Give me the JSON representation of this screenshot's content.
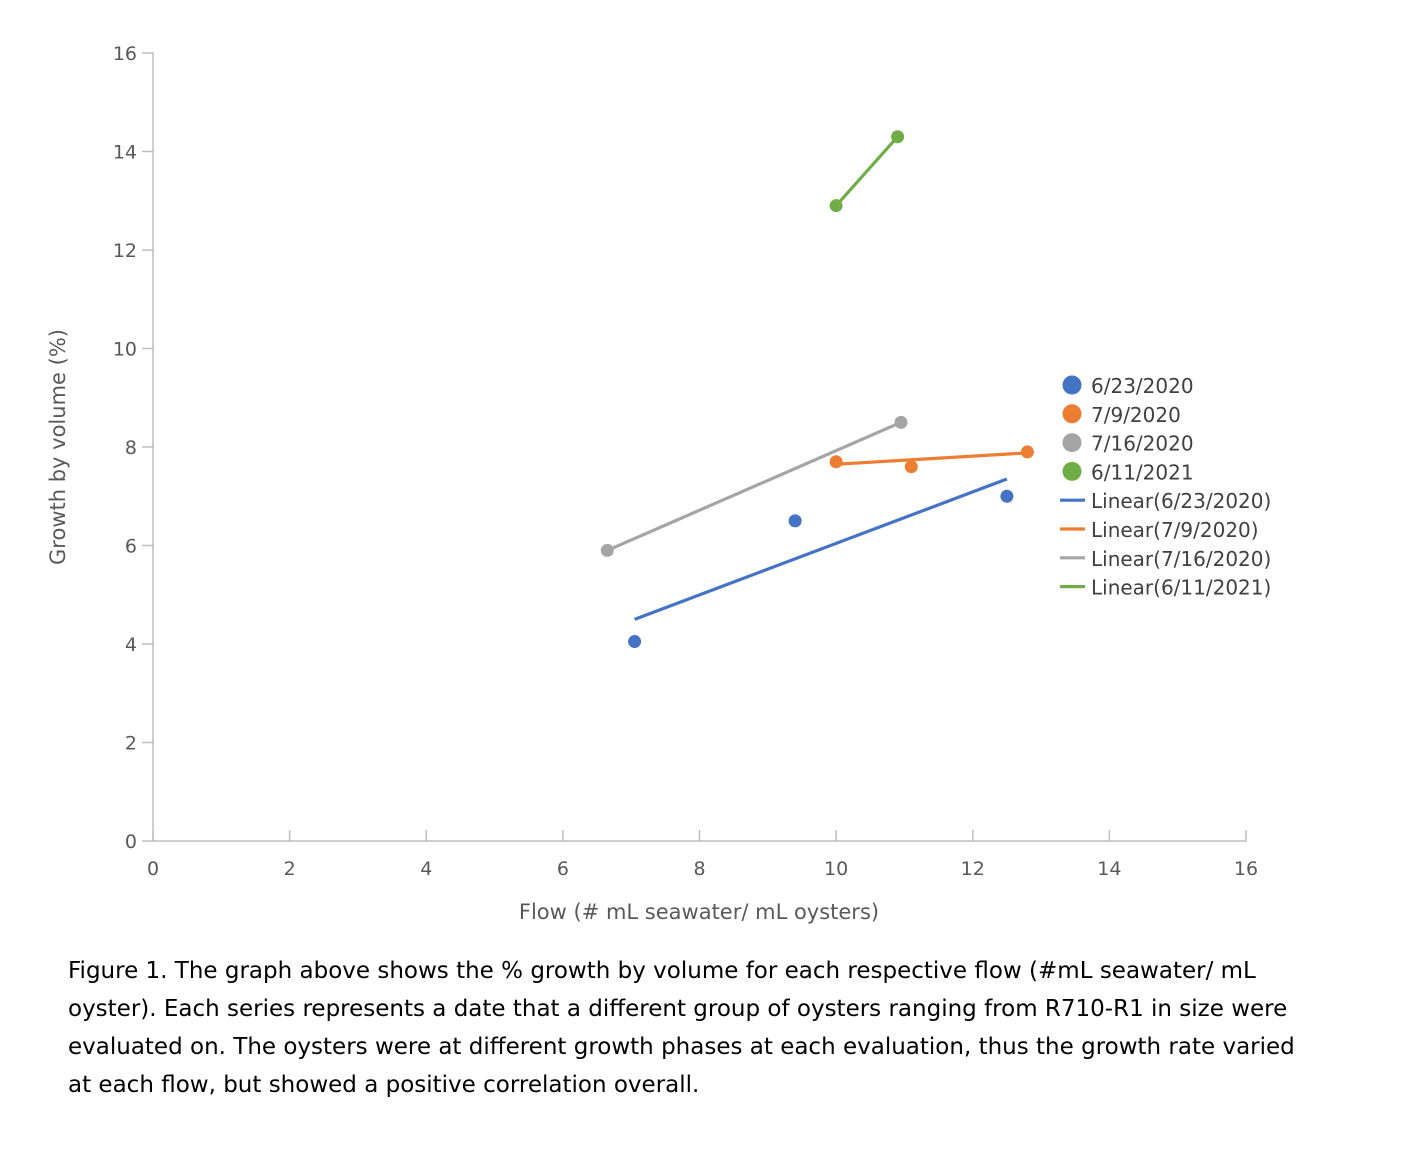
{
  "chart_data": {
    "type": "scatter",
    "xlabel": "Flow (# mL seawater/ mL oysters)",
    "ylabel": "Growth by volume (%)",
    "xlim": [
      0,
      16
    ],
    "ylim": [
      0,
      16
    ],
    "x_ticks": [
      0,
      2,
      4,
      6,
      8,
      10,
      12,
      14,
      16
    ],
    "y_ticks": [
      0,
      2,
      4,
      6,
      8,
      10,
      12,
      14,
      16
    ],
    "grid": false,
    "legend_position": "right",
    "series": [
      {
        "name": "6/23/2020",
        "color": "#4472C4",
        "points": [
          [
            7.05,
            4.05
          ],
          [
            9.4,
            6.5
          ],
          [
            12.5,
            7.0
          ]
        ],
        "trendline": {
          "name": "Linear(6/23/2020)",
          "x": [
            7.05,
            12.5
          ],
          "y": [
            4.5,
            7.35
          ]
        }
      },
      {
        "name": "7/9/2020",
        "color": "#ED7D31",
        "points": [
          [
            10.0,
            7.7
          ],
          [
            11.1,
            7.6
          ],
          [
            12.8,
            7.9
          ]
        ],
        "trendline": {
          "name": "Linear(7/9/2020)",
          "x": [
            10.0,
            12.8
          ],
          "y": [
            7.65,
            7.88
          ]
        }
      },
      {
        "name": "7/16/2020",
        "color": "#A5A5A5",
        "points": [
          [
            6.65,
            5.9
          ],
          [
            10.95,
            8.5
          ]
        ],
        "trendline": {
          "name": "Linear(7/16/2020)",
          "x": [
            6.65,
            10.95
          ],
          "y": [
            5.9,
            8.5
          ]
        }
      },
      {
        "name": "6/11/2021",
        "color": "#70AD47",
        "points": [
          [
            10.0,
            12.9
          ],
          [
            10.9,
            14.3
          ]
        ],
        "trendline": {
          "name": "Linear(6/11/2021)",
          "x": [
            10.0,
            10.9
          ],
          "y": [
            12.9,
            14.3
          ]
        }
      }
    ]
  },
  "caption": "Figure 1. The graph above shows the % growth by volume for each respective flow (#mL seawater/ mL oyster). Each series represents a date that a different group of oysters ranging from R710-R1 in size were evaluated on. The oysters were at different growth phases at each evaluation, thus the growth rate varied at each flow, but showed a positive correlation overall."
}
